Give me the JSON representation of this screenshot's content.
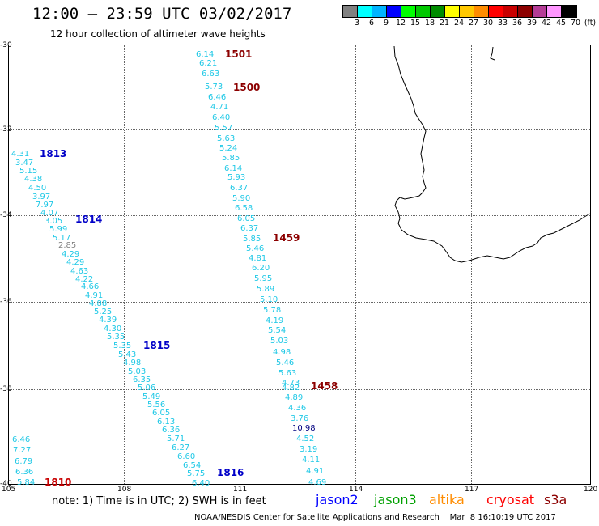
{
  "title": "12:00 – 23:59 UTC 03/02/2017",
  "subtitle": "12 hour collection of altimeter wave heights",
  "legend": {
    "colors": [
      "#808080",
      "#00ffff",
      "#00b4ff",
      "#0000ff",
      "#00ff00",
      "#00c800",
      "#008c00",
      "#ffff00",
      "#ffc800",
      "#ff8c00",
      "#ff0000",
      "#c80000",
      "#8c0000",
      "#b43c96",
      "#ff96ff",
      "#000000"
    ],
    "labels": [
      "3",
      "6",
      "9",
      "12",
      "15",
      "18",
      "21",
      "24",
      "27",
      "30",
      "33",
      "36",
      "39",
      "42",
      "45",
      "70",
      "(ft)"
    ]
  },
  "axes": {
    "lat_labels": [
      "-30",
      "-32",
      "-34",
      "-36",
      "-38",
      "-40"
    ],
    "lon_labels": [
      "105",
      "108",
      "111",
      "114",
      "117",
      "120"
    ]
  },
  "values": [
    {
      "t": "6.14",
      "c": "c"
    },
    {
      "t": "6.21",
      "c": "c"
    },
    {
      "t": "6.63",
      "c": "c"
    },
    {
      "t": "5.73",
      "c": "c"
    },
    {
      "t": "6.46",
      "c": "c"
    },
    {
      "t": "4.71",
      "c": "c"
    },
    {
      "t": "6.40",
      "c": "c"
    },
    {
      "t": "5.57",
      "c": "c"
    },
    {
      "t": "5.63",
      "c": "c"
    },
    {
      "t": "5.24",
      "c": "c"
    },
    {
      "t": "5.85",
      "c": "c"
    },
    {
      "t": "6.14",
      "c": "c"
    },
    {
      "t": "5.93",
      "c": "c"
    },
    {
      "t": "6.37",
      "c": "c"
    },
    {
      "t": "5.90",
      "c": "c"
    },
    {
      "t": "6.58",
      "c": "c"
    },
    {
      "t": "6.05",
      "c": "c"
    },
    {
      "t": "6.37",
      "c": "c"
    },
    {
      "t": "5.85",
      "c": "c"
    },
    {
      "t": "5.46",
      "c": "c"
    },
    {
      "t": "4.81",
      "c": "c"
    },
    {
      "t": "6.20",
      "c": "c"
    },
    {
      "t": "5.95",
      "c": "c"
    },
    {
      "t": "5.89",
      "c": "c"
    },
    {
      "t": "5.10",
      "c": "c"
    },
    {
      "t": "5.78",
      "c": "c"
    },
    {
      "t": "4.19",
      "c": "c"
    },
    {
      "t": "5.54",
      "c": "c"
    },
    {
      "t": "5.03",
      "c": "c"
    },
    {
      "t": "4.98",
      "c": "c"
    },
    {
      "t": "5.46",
      "c": "c"
    },
    {
      "t": "5.63",
      "c": "c"
    },
    {
      "t": "4.73",
      "c": "c"
    },
    {
      "t": "4.82",
      "c": "c"
    },
    {
      "t": "4.89",
      "c": "c"
    },
    {
      "t": "4.36",
      "c": "c"
    },
    {
      "t": "3.76",
      "c": "c"
    },
    {
      "t": "10.98",
      "c": "b"
    },
    {
      "t": "4.52",
      "c": "c"
    },
    {
      "t": "3.19",
      "c": "c"
    },
    {
      "t": "4.11",
      "c": "c"
    },
    {
      "t": "4.91",
      "c": "c"
    },
    {
      "t": "4.69",
      "c": "c"
    },
    {
      "t": "4.31",
      "c": "c"
    },
    {
      "t": "3.47",
      "c": "c"
    },
    {
      "t": "5.15",
      "c": "c"
    },
    {
      "t": "4.38",
      "c": "c"
    },
    {
      "t": "4.50",
      "c": "c"
    },
    {
      "t": "3.97",
      "c": "c"
    },
    {
      "t": "7.97",
      "c": "c"
    },
    {
      "t": "4.07",
      "c": "c"
    },
    {
      "t": "3.05",
      "c": "c"
    },
    {
      "t": "5.99",
      "c": "c"
    },
    {
      "t": "5.17",
      "c": "c"
    },
    {
      "t": "2.85",
      "c": "g"
    },
    {
      "t": "4.29",
      "c": "c"
    },
    {
      "t": "4.29",
      "c": "c"
    },
    {
      "t": "4.63",
      "c": "c"
    },
    {
      "t": "4.22",
      "c": "c"
    },
    {
      "t": "4.66",
      "c": "c"
    },
    {
      "t": "4.91",
      "c": "c"
    },
    {
      "t": "4.88",
      "c": "c"
    },
    {
      "t": "5.25",
      "c": "c"
    },
    {
      "t": "4.39",
      "c": "c"
    },
    {
      "t": "4.30",
      "c": "c"
    },
    {
      "t": "5.35",
      "c": "c"
    },
    {
      "t": "5.35",
      "c": "c"
    },
    {
      "t": "5.43",
      "c": "c"
    },
    {
      "t": "4.98",
      "c": "c"
    },
    {
      "t": "5.03",
      "c": "c"
    },
    {
      "t": "6.35",
      "c": "c"
    },
    {
      "t": "5.06",
      "c": "c"
    },
    {
      "t": "5.49",
      "c": "c"
    },
    {
      "t": "5.56",
      "c": "c"
    },
    {
      "t": "6.05",
      "c": "c"
    },
    {
      "t": "6.13",
      "c": "c"
    },
    {
      "t": "6.36",
      "c": "c"
    },
    {
      "t": "5.71",
      "c": "c"
    },
    {
      "t": "6.27",
      "c": "c"
    },
    {
      "t": "6.60",
      "c": "c"
    },
    {
      "t": "6.54",
      "c": "c"
    },
    {
      "t": "5.75",
      "c": "c"
    },
    {
      "t": "6.40",
      "c": "c"
    },
    {
      "t": "6.46",
      "c": "c"
    },
    {
      "t": "7.27",
      "c": "c"
    },
    {
      "t": "6.79",
      "c": "c"
    },
    {
      "t": "6.36",
      "c": "c"
    },
    {
      "t": "5.84",
      "c": "c"
    }
  ],
  "times": [
    {
      "t": "1501",
      "c": "#8c0000"
    },
    {
      "t": "1500",
      "c": "#8c0000"
    },
    {
      "t": "1459",
      "c": "#8c0000"
    },
    {
      "t": "1458",
      "c": "#8c0000"
    },
    {
      "t": "1813",
      "c": "#0000c8"
    },
    {
      "t": "1814",
      "c": "#0000c8"
    },
    {
      "t": "1815",
      "c": "#0000c8"
    },
    {
      "t": "1816",
      "c": "#0000c8"
    },
    {
      "t": "1810",
      "c": "#c80000"
    }
  ],
  "note": "note: 1) Time is in UTC; 2) SWH is in feet",
  "satellites": [
    {
      "name": "jason2",
      "color": "#0000ff"
    },
    {
      "name": "jason3",
      "color": "#00a000"
    },
    {
      "name": "altika",
      "color": "#ff8c00"
    },
    {
      "name": "cryosat",
      "color": "#ff0000"
    },
    {
      "name": "s3a",
      "color": "#8c0000"
    }
  ],
  "footer": "NOAA/NESDIS Center for Satellite Applications and Research    Mar  8 16:10:19 UTC 2017"
}
